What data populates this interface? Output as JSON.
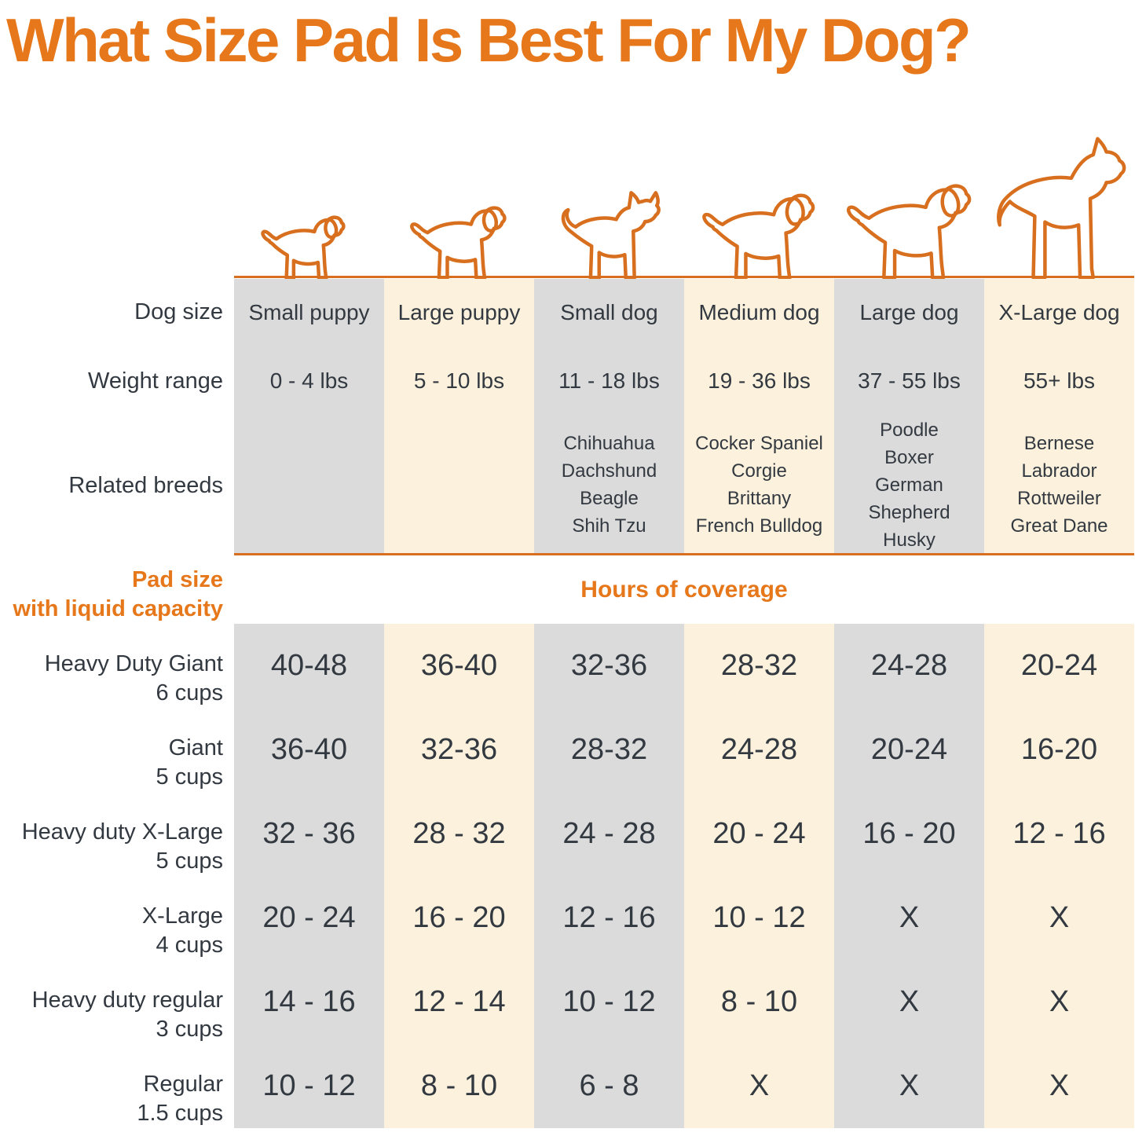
{
  "colors": {
    "accent_orange": "#E6771A",
    "dog_outline_orange": "#D86F1E",
    "column_gray": "#DBDBDB",
    "column_cream": "#FBF1DC",
    "text_dark": "#333940"
  },
  "chart_data": {
    "type": "table",
    "title": "What Size Pad Is Best For My Dog?",
    "row_headers": [
      "Dog size",
      "Weight range",
      "Related breeds"
    ],
    "section_header": {
      "pad_size_line1": "Pad size",
      "pad_size_line2": "with liquid capacity",
      "hours": "Hours of coverage"
    },
    "columns": [
      {
        "icon": "small-puppy-icon",
        "dog_size": "Small puppy",
        "weight_range": "0 - 4 lbs",
        "related_breeds": []
      },
      {
        "icon": "large-puppy-icon",
        "dog_size": "Large puppy",
        "weight_range": "5 - 10 lbs",
        "related_breeds": []
      },
      {
        "icon": "small-dog-icon",
        "dog_size": "Small dog",
        "weight_range": "11 - 18 lbs",
        "related_breeds": [
          "Chihuahua",
          "Dachshund",
          "Beagle",
          "Shih Tzu"
        ]
      },
      {
        "icon": "medium-dog-icon",
        "dog_size": "Medium dog",
        "weight_range": "19 - 36 lbs",
        "related_breeds": [
          "Cocker Spaniel",
          "Corgie",
          "Brittany",
          "French Bulldog"
        ]
      },
      {
        "icon": "large-dog-icon",
        "dog_size": "Large dog",
        "weight_range": "37 - 55 lbs",
        "related_breeds": [
          "Poodle",
          "Boxer",
          "German Shepherd",
          "Husky"
        ]
      },
      {
        "icon": "x-large-dog-icon",
        "dog_size": "X-Large dog",
        "weight_range": "55+ lbs",
        "related_breeds": [
          "Bernese",
          "Labrador",
          "Rottweiler",
          "Great Dane"
        ]
      }
    ],
    "pad_rows": [
      {
        "name": "Heavy Duty Giant",
        "capacity": "6 cups",
        "values": [
          "40-48",
          "36-40",
          "32-36",
          "28-32",
          "24-28",
          "20-24"
        ]
      },
      {
        "name": "Giant",
        "capacity": "5 cups",
        "values": [
          "36-40",
          "32-36",
          "28-32",
          "24-28",
          "20-24",
          "16-20"
        ]
      },
      {
        "name": "Heavy duty X-Large",
        "capacity": "5 cups",
        "values": [
          "32 - 36",
          "28 - 32",
          "24 - 28",
          "20 - 24",
          "16 - 20",
          "12 - 16"
        ]
      },
      {
        "name": "X-Large",
        "capacity": "4 cups",
        "values": [
          "20 - 24",
          "16 - 20",
          "12 - 16",
          "10 - 12",
          "X",
          "X"
        ]
      },
      {
        "name": "Heavy duty regular",
        "capacity": "3 cups",
        "values": [
          "14 - 16",
          "12 - 14",
          "10 - 12",
          "8 - 10",
          "X",
          "X"
        ]
      },
      {
        "name": "Regular",
        "capacity": "1.5 cups",
        "values": [
          "10 - 12",
          "8 - 10",
          "6 - 8",
          "X",
          "X",
          "X"
        ]
      }
    ]
  }
}
